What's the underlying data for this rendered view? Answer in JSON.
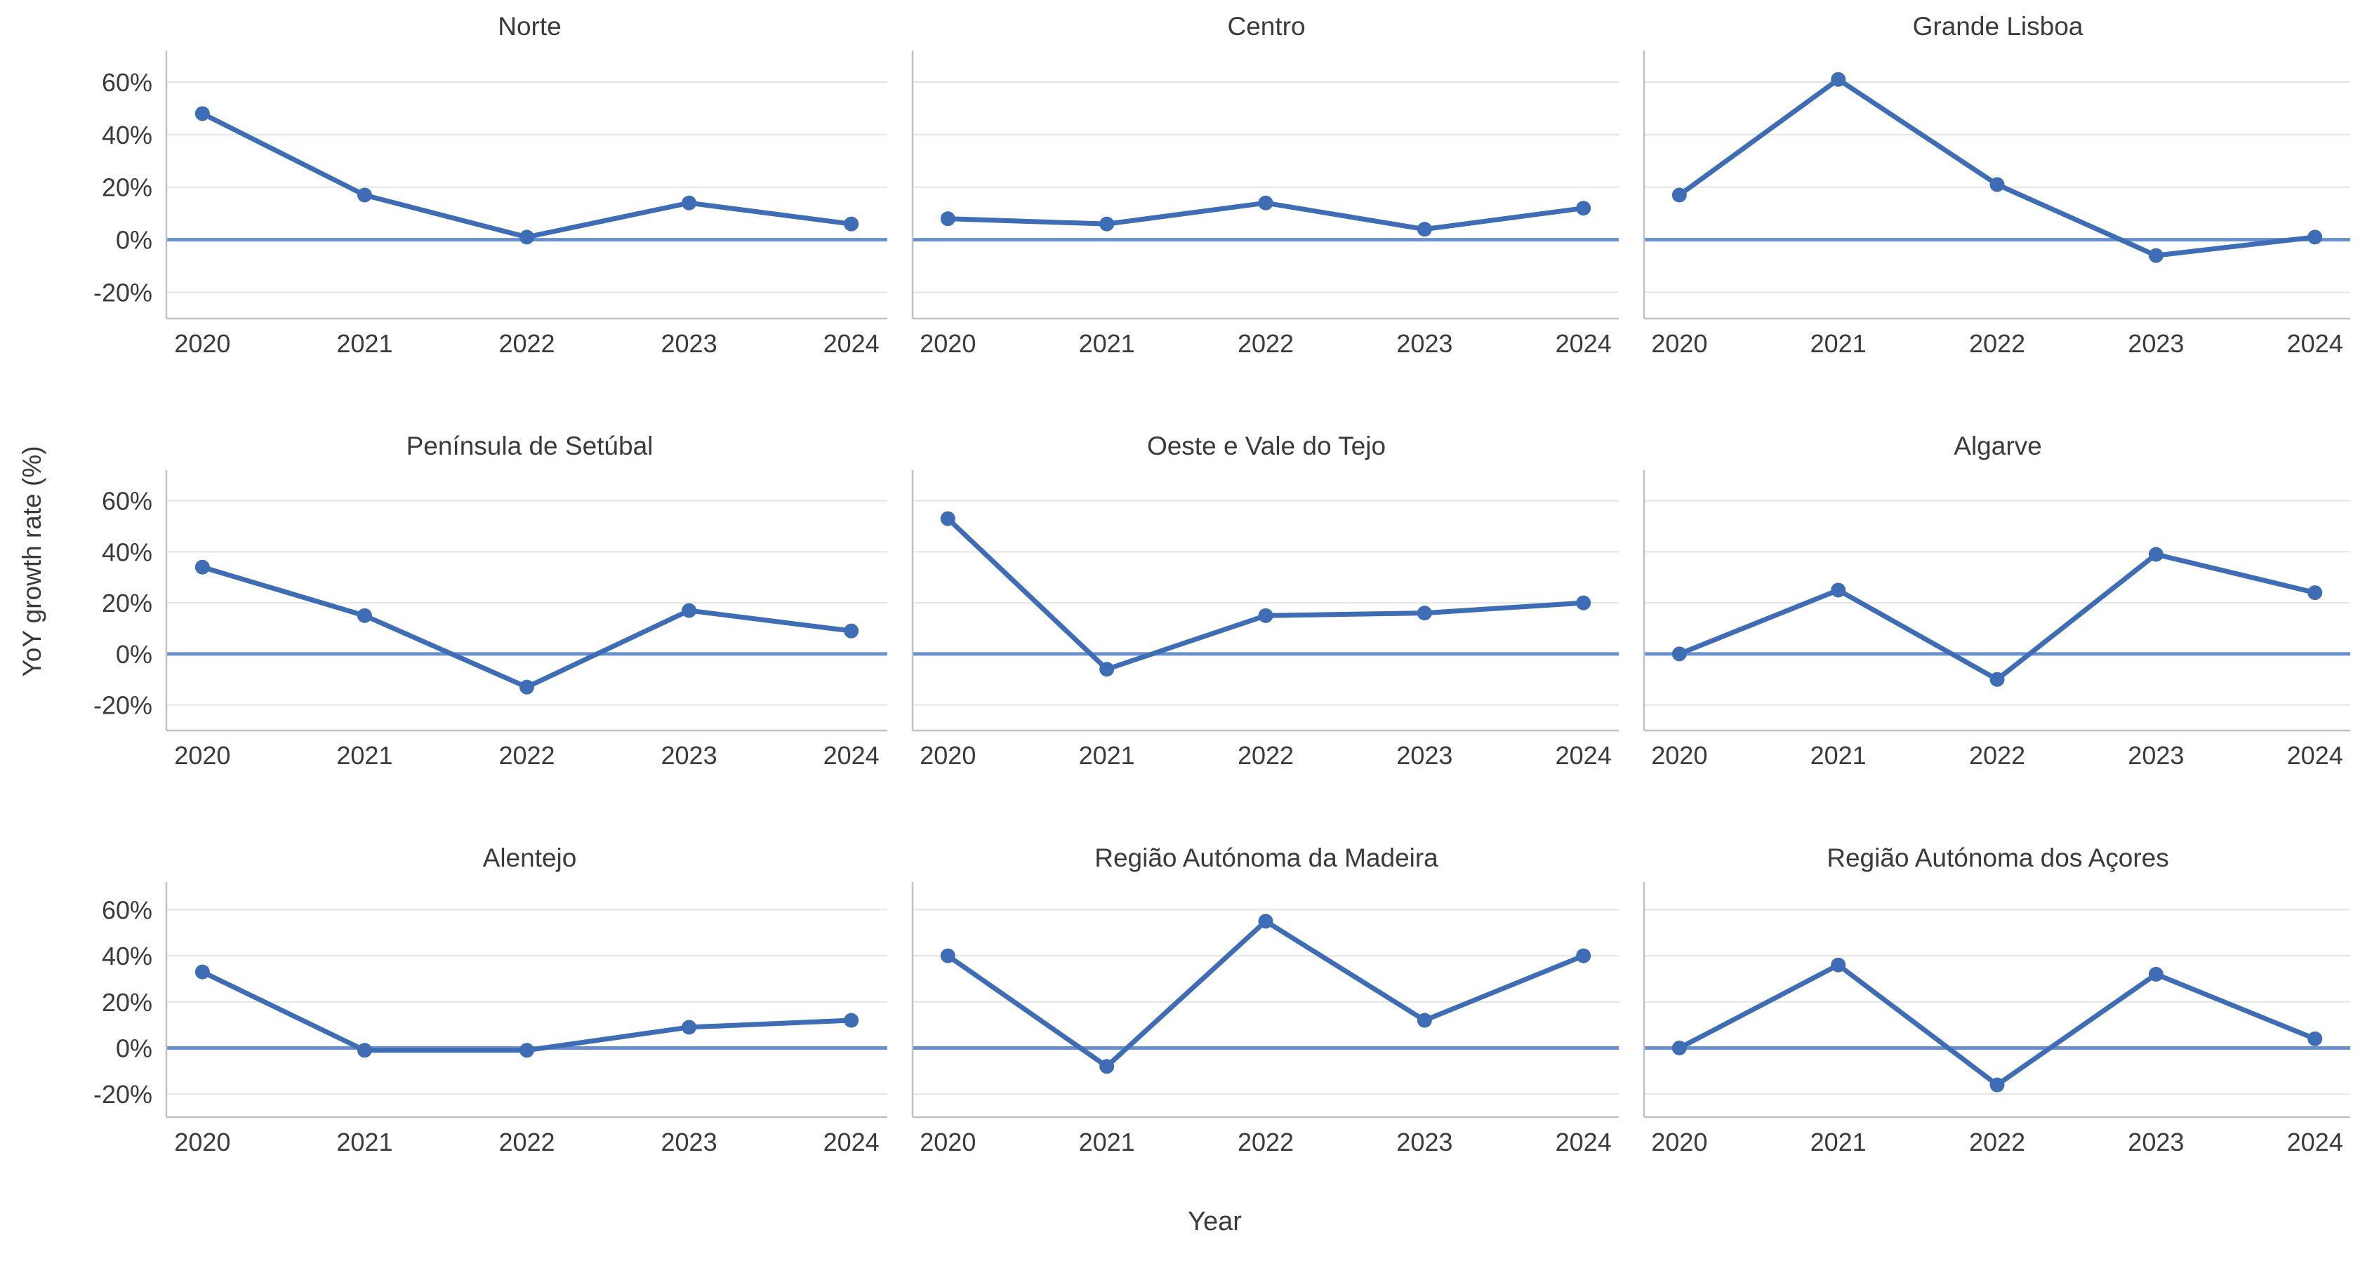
{
  "chart_data": {
    "type": "line",
    "title": "",
    "xlabel": "Year",
    "ylabel": "YoY growth rate (%)",
    "x": [
      2020,
      2021,
      2022,
      2023,
      2024
    ],
    "x_tick_labels": [
      "2020",
      "2021",
      "2022",
      "2023",
      "2024"
    ],
    "y_tick_labels": [
      "60%",
      "40%",
      "20%",
      "0%",
      "-20%"
    ],
    "y_tick_values": [
      60,
      40,
      20,
      0,
      -20
    ],
    "ylim": [
      -30,
      72
    ],
    "grid": true,
    "legend": "none",
    "zero_reference_line": 0,
    "facets": [
      {
        "title": "Norte",
        "values": [
          48,
          17,
          1,
          14,
          6
        ]
      },
      {
        "title": "Centro",
        "values": [
          8,
          6,
          14,
          4,
          12
        ]
      },
      {
        "title": "Grande Lisboa",
        "values": [
          17,
          61,
          21,
          -6,
          1
        ]
      },
      {
        "title": "Península de Setúbal",
        "values": [
          34,
          15,
          -13,
          17,
          9
        ]
      },
      {
        "title": "Oeste e Vale do Tejo",
        "values": [
          53,
          -6,
          15,
          16,
          20
        ]
      },
      {
        "title": "Algarve",
        "values": [
          0,
          25,
          -10,
          39,
          24
        ]
      },
      {
        "title": "Alentejo",
        "values": [
          33,
          -1,
          -1,
          9,
          12
        ]
      },
      {
        "title": "Região Autónoma da Madeira",
        "values": [
          40,
          -8,
          55,
          12,
          40
        ]
      },
      {
        "title": "Região Autónoma dos Açores",
        "values": [
          0,
          36,
          -16,
          32,
          4
        ]
      }
    ],
    "colors": {
      "series": "#3e6cb5",
      "zero_line": "#6a8fcd",
      "grid": "#e4e4e4",
      "spine": "#c1c1c1",
      "text": "#3b3b3b"
    }
  }
}
